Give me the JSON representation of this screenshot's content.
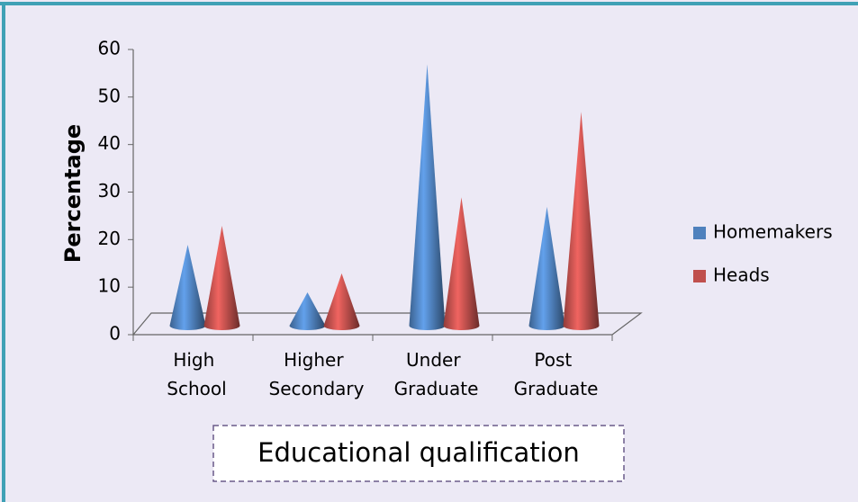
{
  "chart_data": {
    "type": "cone",
    "categories": [
      "High School",
      "Higher Secondary",
      "Under Graduate",
      "Post Graduate"
    ],
    "series": [
      {
        "name": "Homemakers",
        "color": "#4f81bd",
        "values": [
          17,
          7,
          55,
          25
        ]
      },
      {
        "name": "Heads",
        "color": "#c0504d",
        "values": [
          21,
          11,
          27,
          45
        ]
      }
    ],
    "ylim": [
      0,
      60
    ],
    "yticks": [
      0,
      10,
      20,
      30,
      40,
      50,
      60
    ],
    "y_axis_label": "Percentage",
    "x_axis_label": "Educational qualification",
    "legend": "right"
  }
}
